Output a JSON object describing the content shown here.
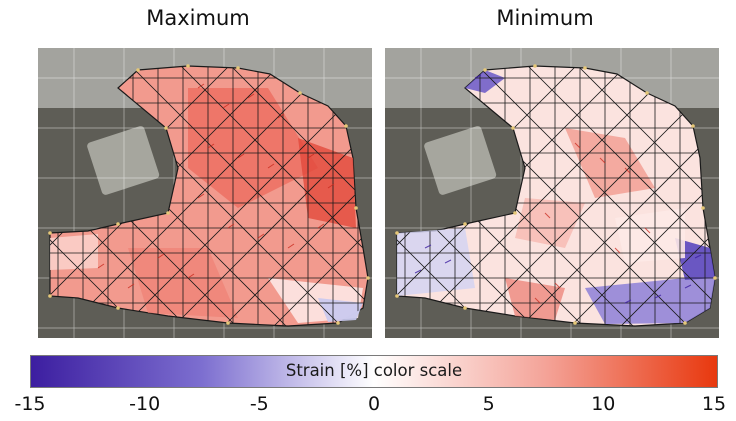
{
  "panels": [
    {
      "title": "Maximum"
    },
    {
      "title": "Minimum"
    }
  ],
  "colorbar": {
    "label": "Strain [%] color scale",
    "ticks": [
      "-15",
      "-10",
      "-5",
      "0",
      "5",
      "10",
      "15"
    ],
    "range": [
      -15,
      15
    ],
    "colors": {
      "negative": "#3c1ea0",
      "zero": "#ffffff",
      "positive": "#e8380e"
    }
  },
  "colors": {
    "background_tissue": "#6b6a62",
    "mesh_line": "#1a1a1a",
    "grid_line": "#ffffff"
  }
}
